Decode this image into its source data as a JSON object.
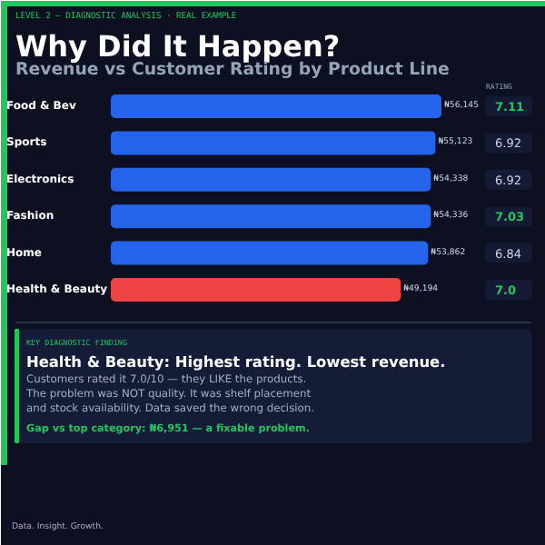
{
  "chart_data": {
    "type": "bar",
    "orientation": "horizontal",
    "title": "Why Did It Happen?",
    "subtitle": "Revenue vs Customer Rating by Product Line",
    "categories": [
      "Food & Bev",
      "Sports",
      "Electronics",
      "Fashion",
      "Home",
      "Health & Beauty"
    ],
    "values": [
      56145,
      55123,
      54338,
      54336,
      53862,
      49194
    ],
    "colors": [
      "#2563eb",
      "#2563eb",
      "#2563eb",
      "#2563eb",
      "#2563eb",
      "#ef4444"
    ],
    "value_labels": [
      "₦56,145",
      "₦55,123",
      "₦54,338",
      "₦54,336",
      "₦53,862",
      "₦49,194"
    ],
    "annotations": [
      "LEVEL 2 — DIAGNOSTIC ANALYSIS  ·  REAL EXAMPLE",
      "RATING",
      "7.11",
      "6.92",
      "6.92",
      "7.03",
      "6.84",
      "7.0",
      "KEY DIAGNOSTIC FINDING",
      "Health & Beauty: Highest rating. Lowest revenue.",
      "Customers rated it 7.0/10 — they LIKE the products.",
      "The problem was NOT quality. It was shelf placement",
      "and stock availability. Data saved the wrong decision.",
      "Gap vs top category: ₦6,951 — a fixable problem.",
      "Data. Insight. Growth."
    ]
  }
}
